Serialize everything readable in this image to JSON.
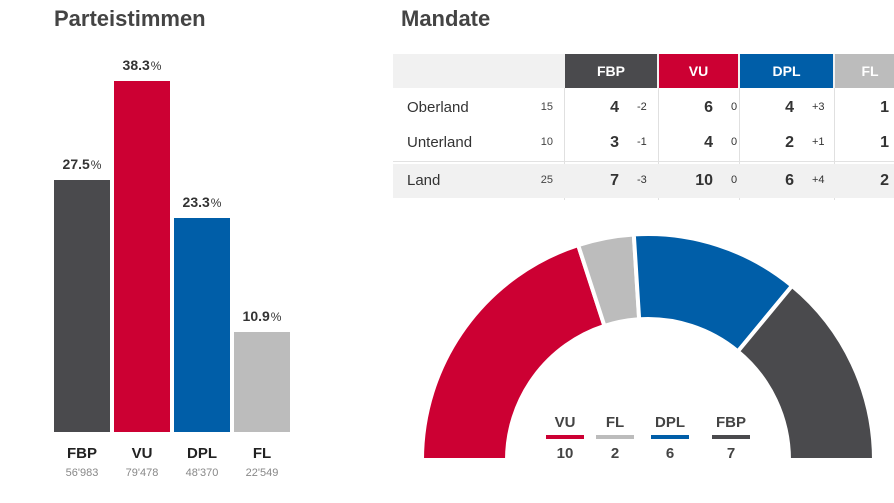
{
  "left_title": "Parteistimmen",
  "right_title": "Mandate",
  "colors": {
    "FBP": "#4a4a4d",
    "VU": "#cc0033",
    "DPL": "#005ea8",
    "FL": "#bcbcbc"
  },
  "chart_data": [
    {
      "type": "bar",
      "title": "Parteistimmen",
      "categories": [
        "FBP",
        "VU",
        "DPL",
        "FL"
      ],
      "values": [
        27.5,
        38.3,
        23.3,
        10.9
      ],
      "value_labels": [
        "27.5",
        "38.3",
        "23.3",
        "10.9"
      ],
      "unit": "%",
      "votes": [
        "56'983",
        "79'478",
        "48'370",
        "22'549"
      ],
      "ylim": [
        0,
        40
      ]
    },
    {
      "type": "pie",
      "title": "Mandate",
      "categories": [
        "VU",
        "FL",
        "DPL",
        "FBP"
      ],
      "values": [
        10,
        2,
        6,
        7
      ],
      "shape": "half-donut"
    }
  ],
  "table": {
    "parties": [
      "FBP",
      "VU",
      "DPL",
      "FL"
    ],
    "rows": [
      {
        "region": "Oberland",
        "total": "15",
        "cells": [
          {
            "seats": "4",
            "change": "-2"
          },
          {
            "seats": "6",
            "change": "0"
          },
          {
            "seats": "4",
            "change": "+3"
          },
          {
            "seats": "1",
            "change": "-"
          }
        ]
      },
      {
        "region": "Unterland",
        "total": "10",
        "cells": [
          {
            "seats": "3",
            "change": "-1"
          },
          {
            "seats": "4",
            "change": "0"
          },
          {
            "seats": "2",
            "change": "+1"
          },
          {
            "seats": "1",
            "change": ""
          }
        ]
      },
      {
        "region": "Land",
        "total": "25",
        "cells": [
          {
            "seats": "7",
            "change": "-3"
          },
          {
            "seats": "10",
            "change": "0"
          },
          {
            "seats": "6",
            "change": "+4"
          },
          {
            "seats": "2",
            "change": "-"
          }
        ]
      }
    ]
  }
}
